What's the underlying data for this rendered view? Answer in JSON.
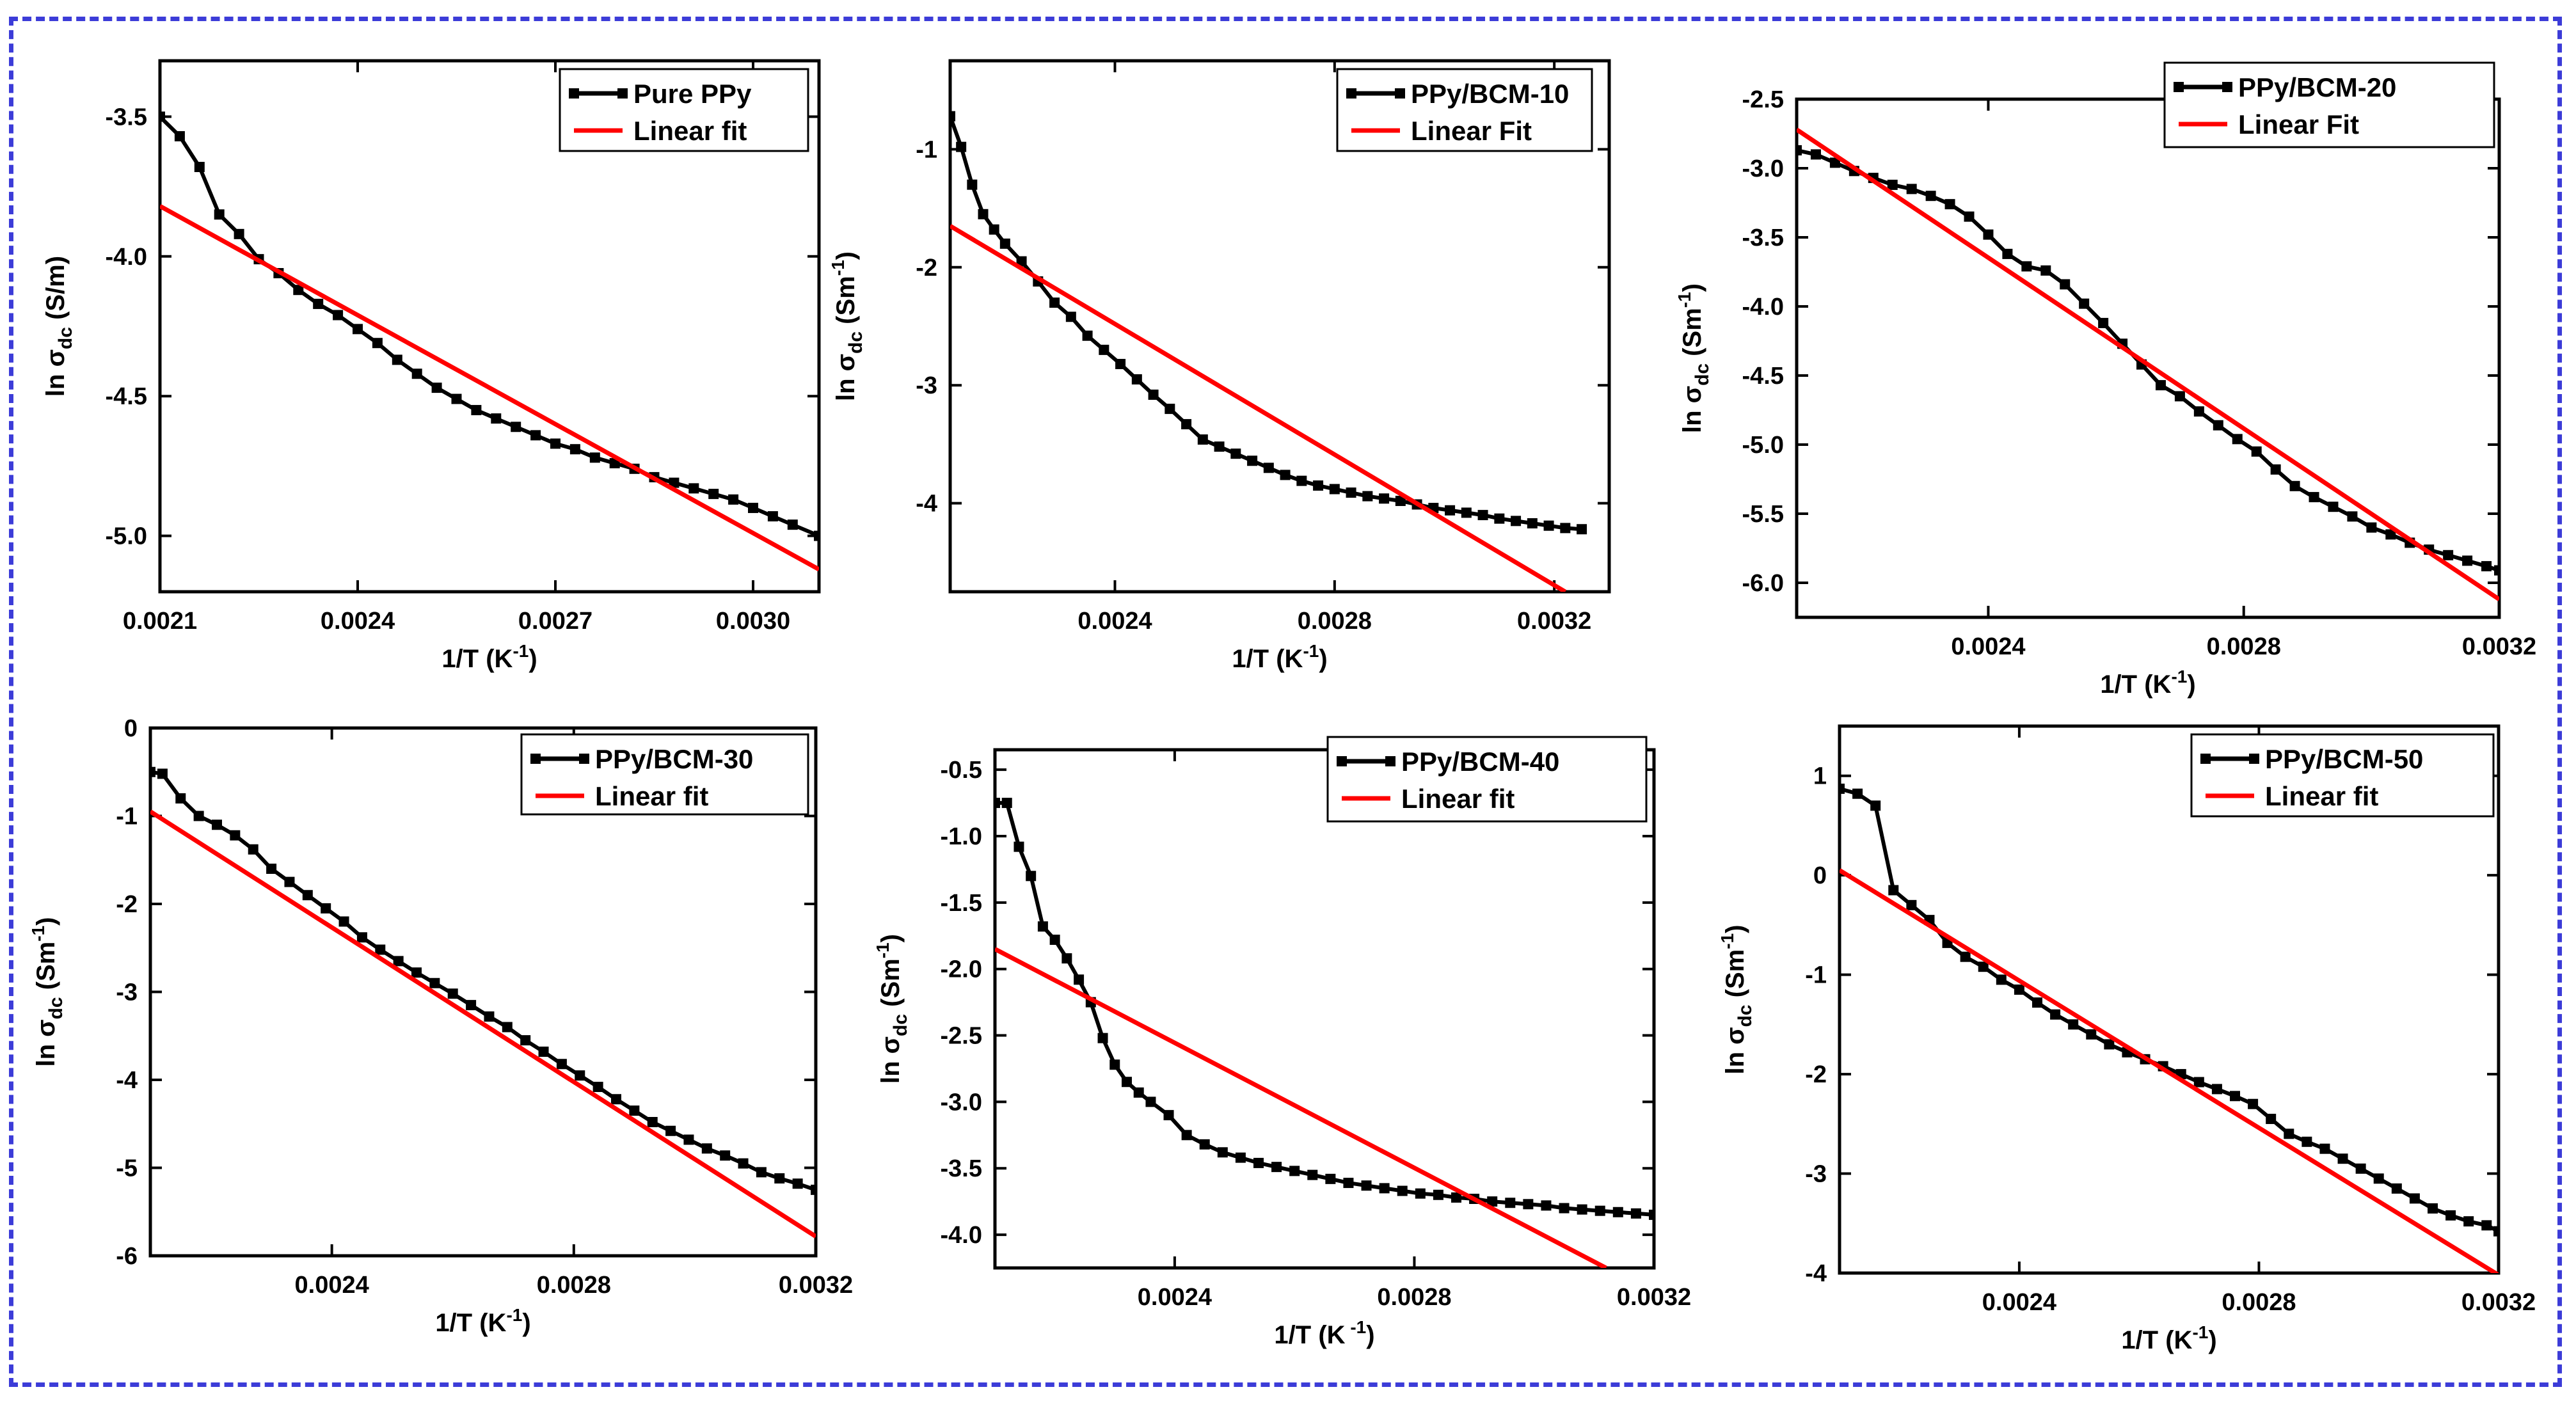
{
  "chart_data": [
    {
      "type": "line",
      "legend_position": "top-right",
      "xlabel_main": "1/T (K",
      "xlabel_sup": "-1",
      "xlabel_end": ")",
      "ylabel_main": "ln σ",
      "ylabel_sub": "dc",
      "ylabel_unit": " (S/m)",
      "ylabel_sup": "",
      "ylabel_end": "",
      "xlim": [
        0.0021,
        0.0031
      ],
      "ylim": [
        -5.2,
        -3.3
      ],
      "xticks": [
        0.0021,
        0.0024,
        0.0027,
        0.003
      ],
      "xtick_labels": [
        "0.0021",
        "0.0024",
        "0.0027",
        "0.0030"
      ],
      "yticks": [
        -5.0,
        -4.5,
        -4.0,
        -3.5
      ],
      "ytick_labels": [
        "-5.0",
        "-4.5",
        "-4.0",
        "-3.5"
      ],
      "series": [
        {
          "name": "Pure PPy",
          "style": "line-square",
          "color": "#000000",
          "x": [
            0.0021,
            0.00213,
            0.00216,
            0.00219,
            0.00222,
            0.00225,
            0.00228,
            0.00231,
            0.00234,
            0.00237,
            0.0024,
            0.00243,
            0.00246,
            0.00249,
            0.00252,
            0.00255,
            0.00258,
            0.00261,
            0.00264,
            0.00267,
            0.0027,
            0.00273,
            0.00276,
            0.00279,
            0.00282,
            0.00285,
            0.00288,
            0.00291,
            0.00294,
            0.00297,
            0.003,
            0.00303,
            0.00306,
            0.0031
          ],
          "y": [
            -3.5,
            -3.57,
            -3.68,
            -3.85,
            -3.92,
            -4.01,
            -4.06,
            -4.12,
            -4.17,
            -4.21,
            -4.26,
            -4.31,
            -4.37,
            -4.42,
            -4.47,
            -4.51,
            -4.55,
            -4.58,
            -4.61,
            -4.64,
            -4.67,
            -4.69,
            -4.72,
            -4.74,
            -4.76,
            -4.79,
            -4.81,
            -4.83,
            -4.85,
            -4.87,
            -4.9,
            -4.93,
            -4.96,
            -5.0
          ]
        },
        {
          "name": "Linear fit",
          "style": "line",
          "color": "#ff0000",
          "x": [
            0.0021,
            0.0031
          ],
          "y": [
            -3.82,
            -5.12
          ]
        }
      ]
    },
    {
      "type": "line",
      "legend_position": "top-right",
      "xlabel_main": "1/T (K",
      "xlabel_sup": "-1",
      "xlabel_end": ")",
      "ylabel_main": "ln σ",
      "ylabel_sub": "dc",
      "ylabel_unit": " (Sm",
      "ylabel_sup": "-1",
      "ylabel_end": ")",
      "xlim": [
        0.0021,
        0.0033
      ],
      "ylim": [
        -4.75,
        -0.25
      ],
      "xticks": [
        0.0024,
        0.0028,
        0.0032
      ],
      "xtick_labels": [
        "0.0024",
        "0.0028",
        "0.0032"
      ],
      "yticks": [
        -4,
        -3,
        -2,
        -1
      ],
      "ytick_labels": [
        "-4",
        "-3",
        "-2",
        "-1"
      ],
      "series": [
        {
          "name": "PPy/BCM-10",
          "style": "line-square",
          "color": "#000000",
          "x": [
            0.0021,
            0.00212,
            0.00214,
            0.00216,
            0.00218,
            0.0022,
            0.00223,
            0.00226,
            0.00229,
            0.00232,
            0.00235,
            0.00238,
            0.00241,
            0.00244,
            0.00247,
            0.0025,
            0.00253,
            0.00256,
            0.00259,
            0.00262,
            0.00265,
            0.00268,
            0.00271,
            0.00274,
            0.00277,
            0.0028,
            0.00283,
            0.00286,
            0.00289,
            0.00292,
            0.00295,
            0.00298,
            0.00301,
            0.00304,
            0.00307,
            0.0031,
            0.00313,
            0.00316,
            0.00319,
            0.00322,
            0.00325
          ],
          "y": [
            -0.72,
            -0.98,
            -1.3,
            -1.55,
            -1.68,
            -1.8,
            -1.95,
            -2.12,
            -2.3,
            -2.42,
            -2.58,
            -2.7,
            -2.82,
            -2.95,
            -3.08,
            -3.2,
            -3.33,
            -3.46,
            -3.52,
            -3.58,
            -3.64,
            -3.7,
            -3.76,
            -3.81,
            -3.85,
            -3.88,
            -3.91,
            -3.94,
            -3.96,
            -3.98,
            -4.01,
            -4.04,
            -4.06,
            -4.08,
            -4.1,
            -4.13,
            -4.15,
            -4.17,
            -4.19,
            -4.21,
            -4.22
          ]
        },
        {
          "name": "Linear Fit",
          "style": "line",
          "color": "#ff0000",
          "x": [
            0.0021,
            0.00322
          ],
          "y": [
            -1.65,
            -4.75
          ]
        }
      ]
    },
    {
      "type": "line",
      "legend_position": "top-right",
      "xlabel_main": "1/T (K",
      "xlabel_sup": "-1",
      "xlabel_end": ")",
      "ylabel_main": "ln σ",
      "ylabel_sub": "dc",
      "ylabel_unit": " (Sm",
      "ylabel_sup": "-1",
      "ylabel_end": ")",
      "xlim": [
        0.0021,
        0.0032
      ],
      "ylim": [
        -6.25,
        -2.5
      ],
      "xticks": [
        0.0024,
        0.0028,
        0.0032
      ],
      "xtick_labels": [
        "0.0024",
        "0.0028",
        "0.0032"
      ],
      "yticks": [
        -6.0,
        -5.5,
        -5.0,
        -4.5,
        -4.0,
        -3.5,
        -3.0,
        -2.5
      ],
      "ytick_labels": [
        "-6.0",
        "-5.5",
        "-5.0",
        "-4.5",
        "-4.0",
        "-3.5",
        "-3.0",
        "-2.5"
      ],
      "series": [
        {
          "name": "PPy/BCM-20",
          "style": "line-square",
          "color": "#000000",
          "x": [
            0.0021,
            0.00213,
            0.00216,
            0.00219,
            0.00222,
            0.00225,
            0.00228,
            0.00231,
            0.00234,
            0.00237,
            0.0024,
            0.00243,
            0.00246,
            0.00249,
            0.00252,
            0.00255,
            0.00258,
            0.00261,
            0.00264,
            0.00267,
            0.0027,
            0.00273,
            0.00276,
            0.00279,
            0.00282,
            0.00285,
            0.00288,
            0.00291,
            0.00294,
            0.00297,
            0.003,
            0.00303,
            0.00306,
            0.00309,
            0.00312,
            0.00315,
            0.00318,
            0.0032
          ],
          "y": [
            -2.87,
            -2.9,
            -2.96,
            -3.02,
            -3.07,
            -3.12,
            -3.15,
            -3.2,
            -3.26,
            -3.35,
            -3.48,
            -3.62,
            -3.71,
            -3.74,
            -3.84,
            -3.98,
            -4.12,
            -4.27,
            -4.42,
            -4.57,
            -4.65,
            -4.76,
            -4.86,
            -4.96,
            -5.05,
            -5.18,
            -5.3,
            -5.38,
            -5.45,
            -5.52,
            -5.6,
            -5.65,
            -5.71,
            -5.76,
            -5.8,
            -5.84,
            -5.88,
            -5.91
          ]
        },
        {
          "name": "Linear Fit",
          "style": "line",
          "color": "#ff0000",
          "x": [
            0.0021,
            0.0032
          ],
          "y": [
            -2.72,
            -6.12
          ]
        }
      ]
    },
    {
      "type": "line",
      "legend_position": "top-right",
      "xlabel_main": "1/T (K",
      "xlabel_sup": "-1",
      "xlabel_end": ")",
      "ylabel_main": "ln σ",
      "ylabel_sub": "dc",
      "ylabel_unit": " (Sm",
      "ylabel_sup": "-1",
      "ylabel_end": ")",
      "xlim": [
        0.0021,
        0.0032
      ],
      "ylim": [
        -6,
        0
      ],
      "xticks": [
        0.0024,
        0.0028,
        0.0032
      ],
      "xtick_labels": [
        "0.0024",
        "0.0028",
        "0.0032"
      ],
      "yticks": [
        -6,
        -5,
        -4,
        -3,
        -2,
        -1,
        0
      ],
      "ytick_labels": [
        "-6",
        "-5",
        "-4",
        "-3",
        "-2",
        "-1",
        "0"
      ],
      "series": [
        {
          "name": "PPy/BCM-30",
          "style": "line-square",
          "color": "#000000",
          "x": [
            0.0021,
            0.00212,
            0.00215,
            0.00218,
            0.00221,
            0.00224,
            0.00227,
            0.0023,
            0.00233,
            0.00236,
            0.00239,
            0.00242,
            0.00245,
            0.00248,
            0.00251,
            0.00254,
            0.00257,
            0.0026,
            0.00263,
            0.00266,
            0.00269,
            0.00272,
            0.00275,
            0.00278,
            0.00281,
            0.00284,
            0.00287,
            0.0029,
            0.00293,
            0.00296,
            0.00299,
            0.00302,
            0.00305,
            0.00308,
            0.00311,
            0.00314,
            0.00317,
            0.0032
          ],
          "y": [
            -0.5,
            -0.52,
            -0.8,
            -1.0,
            -1.1,
            -1.22,
            -1.38,
            -1.6,
            -1.75,
            -1.9,
            -2.05,
            -2.2,
            -2.38,
            -2.52,
            -2.65,
            -2.78,
            -2.9,
            -3.02,
            -3.15,
            -3.28,
            -3.4,
            -3.55,
            -3.68,
            -3.82,
            -3.95,
            -4.08,
            -4.22,
            -4.35,
            -4.48,
            -4.58,
            -4.68,
            -4.78,
            -4.86,
            -4.95,
            -5.05,
            -5.12,
            -5.18,
            -5.25
          ]
        },
        {
          "name": "Linear fit",
          "style": "line",
          "color": "#ff0000",
          "x": [
            0.0021,
            0.0032
          ],
          "y": [
            -0.95,
            -5.78
          ]
        }
      ]
    },
    {
      "type": "line",
      "legend_position": "top-right",
      "xlabel_main": "1/T (K",
      "xlabel_sup": " -1",
      "xlabel_end": ")",
      "ylabel_main": "ln σ",
      "ylabel_sub": "dc",
      "ylabel_unit": " (Sm",
      "ylabel_sup": "-1",
      "ylabel_end": ")",
      "xlim": [
        0.0021,
        0.0032
      ],
      "ylim": [
        -4.25,
        -0.35
      ],
      "xticks": [
        0.0024,
        0.0028,
        0.0032
      ],
      "xtick_labels": [
        "0.0024",
        "0.0028",
        "0.0032"
      ],
      "yticks": [
        -4.0,
        -3.5,
        -3.0,
        -2.5,
        -2.0,
        -1.5,
        -1.0,
        -0.5
      ],
      "ytick_labels": [
        "-4.0",
        "-3.5",
        "-3.0",
        "-2.5",
        "-2.0",
        "-1.5",
        "-1.0",
        "-0.5"
      ],
      "series": [
        {
          "name": "PPy/BCM-40",
          "style": "line-square",
          "color": "#000000",
          "x": [
            0.0021,
            0.00212,
            0.00214,
            0.00216,
            0.00218,
            0.0022,
            0.00222,
            0.00224,
            0.00226,
            0.00228,
            0.0023,
            0.00232,
            0.00234,
            0.00236,
            0.00239,
            0.00242,
            0.00245,
            0.00248,
            0.00251,
            0.00254,
            0.00257,
            0.0026,
            0.00263,
            0.00266,
            0.00269,
            0.00272,
            0.00275,
            0.00278,
            0.00281,
            0.00284,
            0.00287,
            0.0029,
            0.00293,
            0.00296,
            0.00299,
            0.00302,
            0.00305,
            0.00308,
            0.00311,
            0.00314,
            0.00317,
            0.0032
          ],
          "y": [
            -0.75,
            -0.75,
            -1.08,
            -1.3,
            -1.68,
            -1.78,
            -1.92,
            -2.08,
            -2.25,
            -2.52,
            -2.72,
            -2.85,
            -2.93,
            -3.0,
            -3.1,
            -3.25,
            -3.32,
            -3.38,
            -3.42,
            -3.46,
            -3.49,
            -3.52,
            -3.55,
            -3.58,
            -3.61,
            -3.63,
            -3.65,
            -3.67,
            -3.69,
            -3.7,
            -3.72,
            -3.73,
            -3.75,
            -3.76,
            -3.77,
            -3.78,
            -3.8,
            -3.81,
            -3.82,
            -3.83,
            -3.84,
            -3.85
          ]
        },
        {
          "name": "Linear fit",
          "style": "line",
          "color": "#ff0000",
          "x": [
            0.0021,
            0.00312
          ],
          "y": [
            -1.85,
            -4.25
          ]
        }
      ]
    },
    {
      "type": "line",
      "legend_position": "top-right",
      "xlabel_main": "1/T (K",
      "xlabel_sup": "-1",
      "xlabel_end": ")",
      "ylabel_main": "ln σ",
      "ylabel_sub": "dc",
      "ylabel_unit": " (Sm",
      "ylabel_sup": "-1",
      "ylabel_end": ")",
      "xlim": [
        0.0021,
        0.0032
      ],
      "ylim": [
        -4,
        1.5
      ],
      "xticks": [
        0.0024,
        0.0028,
        0.0032
      ],
      "xtick_labels": [
        "0.0024",
        "0.0028",
        "0.0032"
      ],
      "yticks": [
        -4,
        -3,
        -2,
        -1,
        0,
        1
      ],
      "ytick_labels": [
        "-4",
        "-3",
        "-2",
        "-1",
        "0",
        "1"
      ],
      "series": [
        {
          "name": "PPy/BCM-50",
          "style": "line-square",
          "color": "#000000",
          "x": [
            0.0021,
            0.00213,
            0.00216,
            0.00219,
            0.00222,
            0.00225,
            0.00228,
            0.00231,
            0.00234,
            0.00237,
            0.0024,
            0.00243,
            0.00246,
            0.00249,
            0.00252,
            0.00255,
            0.00258,
            0.00261,
            0.00264,
            0.00267,
            0.0027,
            0.00273,
            0.00276,
            0.00279,
            0.00282,
            0.00285,
            0.00288,
            0.00291,
            0.00294,
            0.00297,
            0.003,
            0.00303,
            0.00306,
            0.00309,
            0.00312,
            0.00315,
            0.00318,
            0.0032
          ],
          "y": [
            0.87,
            0.82,
            0.7,
            -0.15,
            -0.3,
            -0.45,
            -0.68,
            -0.82,
            -0.92,
            -1.05,
            -1.15,
            -1.28,
            -1.4,
            -1.5,
            -1.6,
            -1.7,
            -1.78,
            -1.85,
            -1.92,
            -2.0,
            -2.08,
            -2.15,
            -2.22,
            -2.3,
            -2.45,
            -2.6,
            -2.68,
            -2.75,
            -2.85,
            -2.95,
            -3.05,
            -3.15,
            -3.25,
            -3.35,
            -3.42,
            -3.48,
            -3.52,
            -3.58
          ]
        },
        {
          "name": "Linear fit",
          "style": "line",
          "color": "#ff0000",
          "x": [
            0.0021,
            0.0032
          ],
          "y": [
            0.05,
            -4.02
          ]
        }
      ]
    }
  ]
}
